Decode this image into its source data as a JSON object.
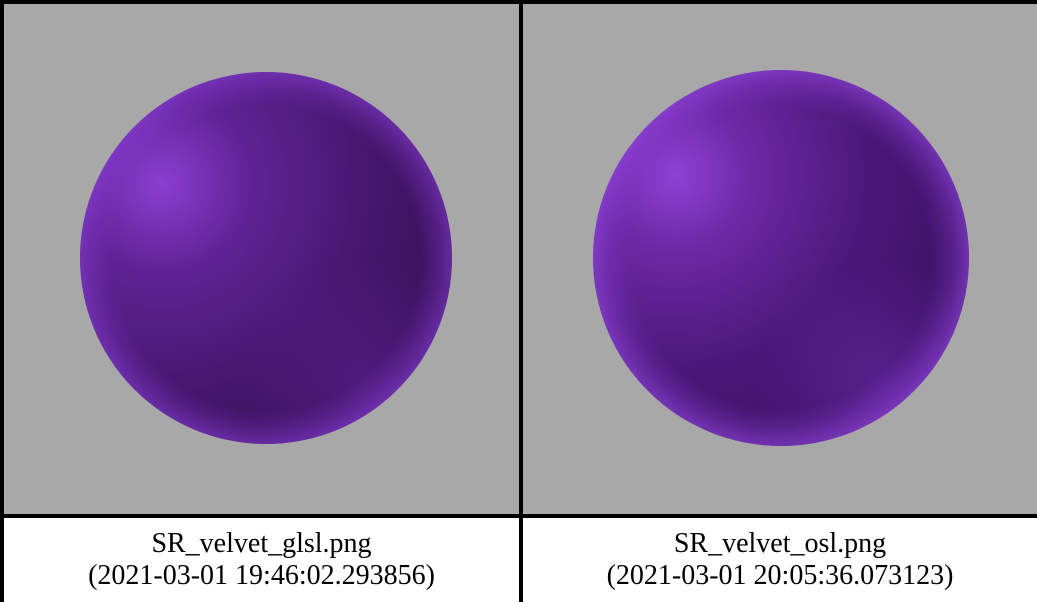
{
  "background_color": "#a8a8a8",
  "sphere_color": "#5a1f8c",
  "renders": [
    {
      "filename": "SR_velvet_glsl.png",
      "timestamp": "(2021-03-01 19:46:02.293856)"
    },
    {
      "filename": "SR_velvet_osl.png",
      "timestamp": "(2021-03-01 20:05:36.073123)"
    }
  ]
}
